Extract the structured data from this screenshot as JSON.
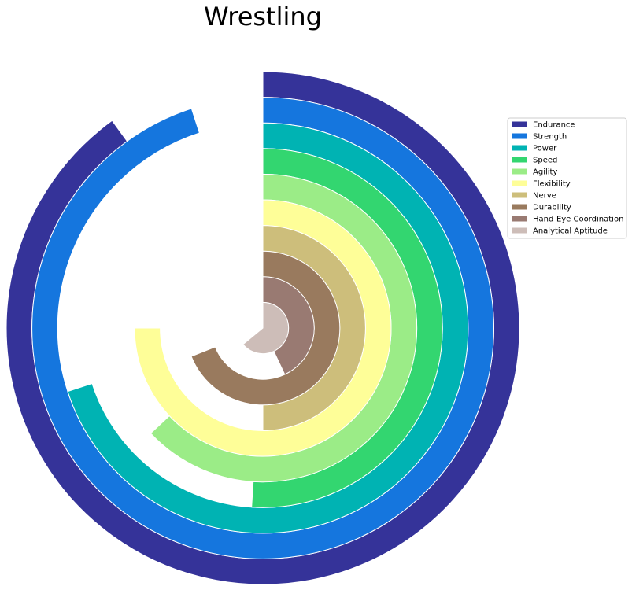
{
  "chart_data": {
    "type": "radial-bar",
    "title": "Wrestling",
    "max_value": 100,
    "start": "top",
    "direction": "clockwise",
    "legend_position": "right",
    "series": [
      {
        "name": "Endurance",
        "value": 90,
        "color": "#353399"
      },
      {
        "name": "Strength",
        "value": 95,
        "color": "#1576DE"
      },
      {
        "name": "Power",
        "value": 70,
        "color": "#00B3B3"
      },
      {
        "name": "Speed",
        "value": 51,
        "color": "#33D670"
      },
      {
        "name": "Agility",
        "value": 63,
        "color": "#9BEC87"
      },
      {
        "name": "Flexibility",
        "value": 75,
        "color": "#FEFE98"
      },
      {
        "name": "Nerve",
        "value": 50,
        "color": "#CDBE7B"
      },
      {
        "name": "Durability",
        "value": 69,
        "color": "#997A5E"
      },
      {
        "name": "Hand-Eye Coordination",
        "value": 43,
        "color": "#997A72"
      },
      {
        "name": "Analytical Aptitude",
        "value": 64,
        "color": "#CDBDB8"
      }
    ]
  }
}
